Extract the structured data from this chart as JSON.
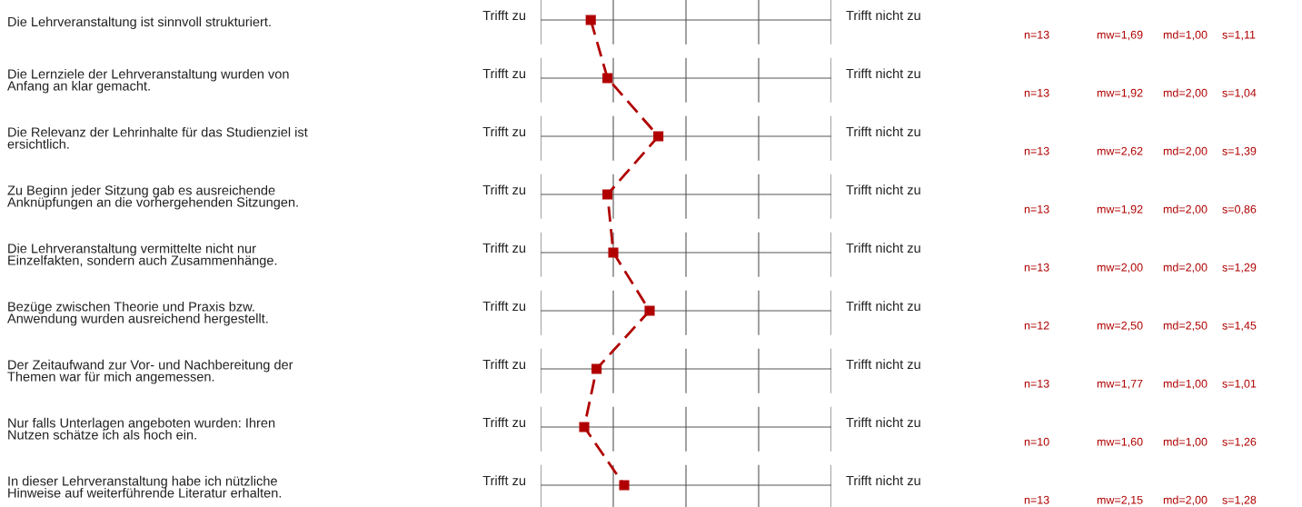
{
  "chart_data": {
    "type": "line",
    "orientation": "horizontal",
    "categories": [
      "Die Lehrveranstaltung ist sinnvoll strukturiert.",
      "Die Lernziele der Lehrveranstaltung wurden von\nAnfang an klar gemacht.",
      "Die Relevanz der Lehrinhalte für das Studienziel ist\nersichtlich.",
      "Zu Beginn jeder Sitzung gab es ausreichende\nAnknüpfungen an die vorhergehenden Sitzungen.",
      "Die Lehrveranstaltung vermittelte nicht nur\nEinzelfakten, sondern auch Zusammenhänge.",
      "Bezüge zwischen Theorie und Praxis bzw.\nAnwendung wurden ausreichend hergestellt.",
      "Der Zeitaufwand zur Vor- und Nachbereitung der\nThemen war für mich angemessen.",
      "Nur falls Unterlagen angeboten wurden: Ihren\nNutzen schätze ich als hoch ein.",
      "In dieser Lehrveranstaltung habe ich nützliche\nHinweise auf weiterführende Literatur erhalten."
    ],
    "series": [
      {
        "color": "#b00000",
        "values": [
          1.69,
          1.92,
          2.62,
          1.92,
          2.0,
          2.5,
          1.77,
          1.6,
          2.15
        ],
        "value_labels": [
          "mw=1,69",
          "mw=1,92",
          "mw=2,62",
          "mw=1,92",
          "mw=2,00",
          "mw=2,50",
          "mw=1,77",
          "mw=1,60",
          "mw=2,15"
        ]
      }
    ],
    "xlim": [
      1,
      5
    ],
    "grid": true,
    "marker": "square",
    "line_style": "dashed",
    "legend": false,
    "annotations": [
      "Trifft zu",
      "Trifft nicht zu",
      "n=13",
      "md=1,00",
      "s=1,11",
      "n=13",
      "md=2,00",
      "s=1,04",
      "n=13",
      "md=2,00",
      "s=1,39",
      "n=13",
      "md=2,00",
      "s=0,86",
      "n=13",
      "md=2,00",
      "s=1,29",
      "n=12",
      "md=2,50",
      "s=1,45",
      "n=13",
      "md=1,00",
      "s=1,01",
      "n=10",
      "md=1,00",
      "s=1,26",
      "n=13",
      "md=2,00",
      "s=1,28"
    ]
  }
}
